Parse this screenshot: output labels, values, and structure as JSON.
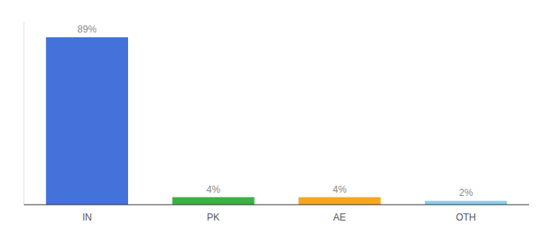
{
  "chart_data": {
    "type": "bar",
    "categories": [
      "IN",
      "PK",
      "AE",
      "OTH"
    ],
    "values": [
      89,
      4,
      4,
      2
    ],
    "value_labels": [
      "89%",
      "4%",
      "4%",
      "2%"
    ],
    "colors": [
      "#4472db",
      "#3cb043",
      "#f5a623",
      "#87ceeb"
    ],
    "ylim": [
      0,
      97
    ],
    "data_labels": true,
    "tick_labels": "x"
  }
}
